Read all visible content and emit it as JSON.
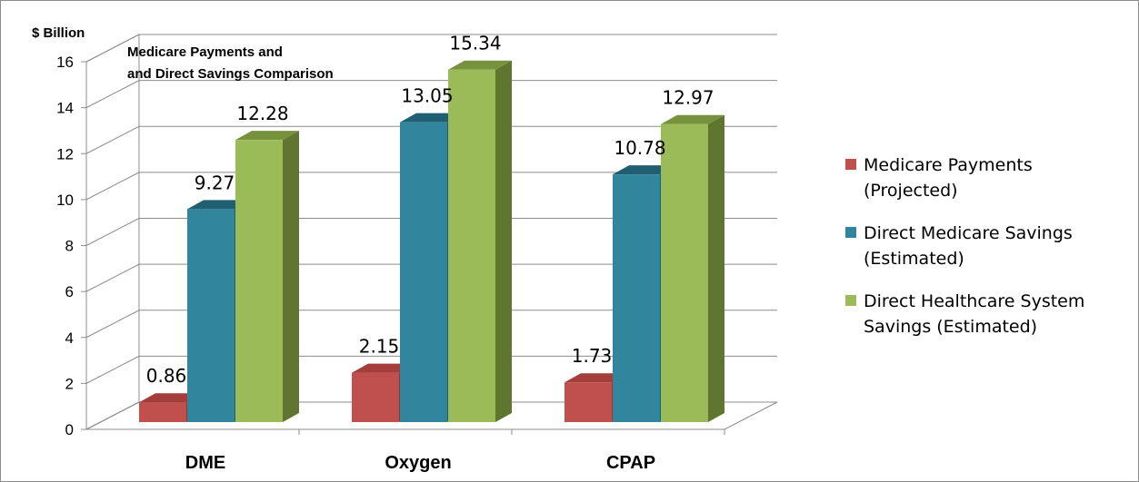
{
  "chart_data": {
    "type": "bar",
    "style": "3d-clustered-column",
    "title": "Medicare Payments and and Direct Savings Comparison",
    "title_lines": [
      "Medicare Payments and",
      "and Direct Savings Comparison"
    ],
    "ylabel": "$ Billion",
    "xlabel": "",
    "ylim": [
      0,
      16
    ],
    "yticks": [
      "0",
      "2",
      "4",
      "6",
      "8",
      "10",
      "12",
      "14",
      "16"
    ],
    "grid": true,
    "legend_position": "right",
    "categories": [
      "DME",
      "Oxygen",
      "CPAP"
    ],
    "series": [
      {
        "name": "Medicare Payments (Projected)",
        "legend_lines": [
          "Medicare Payments",
          "(Projected)"
        ],
        "values": [
          0.86,
          2.15,
          1.73
        ],
        "labels": [
          "0.86",
          "2.15",
          "1.73"
        ],
        "color": "#C0504D",
        "top_color": "#A33E3B",
        "side_color": "#8C3836"
      },
      {
        "name": "Direct Medicare Savings (Estimated)",
        "legend_lines": [
          "Direct Medicare Savings",
          "(Estimated)"
        ],
        "values": [
          9.27,
          13.05,
          10.78
        ],
        "labels": [
          "9.27",
          "13.05",
          "10.78"
        ],
        "color": "#31859C",
        "top_color": "#205F72",
        "side_color": "#215E6F"
      },
      {
        "name": "Direct Healthcare System Savings (Estimated)",
        "legend_lines": [
          "Direct Healthcare System",
          "Savings (Estimated)"
        ],
        "values": [
          12.28,
          15.34,
          12.97
        ],
        "labels": [
          "12.28",
          "15.34",
          "12.97"
        ],
        "color": "#9BBB59",
        "top_color": "#76923C",
        "side_color": "#5F7530"
      }
    ]
  }
}
